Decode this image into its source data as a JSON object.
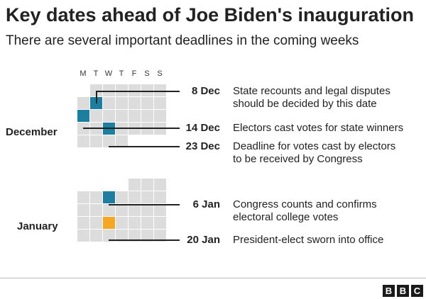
{
  "title": "Key dates ahead of Joe Biden's inauguration",
  "subtitle": "There are several important deadlines in the coming weeks",
  "weekdays": [
    "M",
    "T",
    "W",
    "T",
    "F",
    "S",
    "S"
  ],
  "months": {
    "december": "December",
    "january": "January"
  },
  "events": [
    {
      "date": "8 Dec",
      "line1": "State recounts and legal disputes",
      "line2": "should be decided by this date",
      "color": "#1d7ea0"
    },
    {
      "date": "14 Dec",
      "line1": "Electors cast votes for state winners",
      "line2": "",
      "color": "#1d7ea0"
    },
    {
      "date": "23 Dec",
      "line1": "Deadline for votes cast by electors",
      "line2": "to be received by Congress",
      "color": "#1d7ea0"
    },
    {
      "date": "6 Jan",
      "line1": "Congress counts and confirms",
      "line2": "electoral college votes",
      "color": "#1d7ea0"
    },
    {
      "date": "20 Jan",
      "line1": "President-elect sworn into office",
      "line2": "",
      "color": "#f5a623"
    }
  ],
  "colors": {
    "cell": "#dcdcdc",
    "highlight": "#1d7ea0",
    "inauguration": "#f5a623"
  },
  "footer": {
    "logo": [
      "B",
      "B",
      "C"
    ]
  }
}
